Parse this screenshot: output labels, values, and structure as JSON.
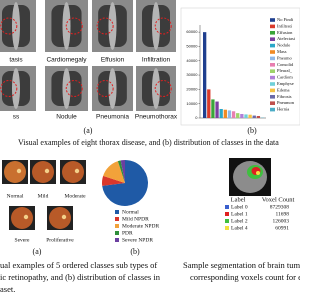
{
  "xray": {
    "labels": [
      "tasis",
      "Cardiomegaly",
      "Effusion",
      "Infiltration",
      "ss",
      "Nodule",
      "Pneumonia",
      "Pneumothorax"
    ],
    "panel_label": "(a)"
  },
  "bar_panel_label": "(b)",
  "caption_1": "Visual examples of eight thorax disease, and (b) distribution of classes in the data",
  "chart_data": [
    {
      "type": "bar",
      "categories": [
        "No Findi",
        "Infiltrati",
        "Effusion",
        "Atelectasi",
        "Nodule",
        "Mass",
        "Pneumo",
        "Consolid",
        "Pleural_",
        "Cardiom",
        "Emphyse",
        "Edema",
        "Fibrosis",
        "Pneumon",
        "Hernia"
      ],
      "values": [
        60000,
        20000,
        13000,
        11500,
        6300,
        5800,
        5300,
        4700,
        3400,
        2800,
        2500,
        2300,
        1700,
        1400,
        230
      ],
      "colors": [
        "#1f3f8f",
        "#d93a2b",
        "#3aa53a",
        "#7b3fa0",
        "#2aa7c9",
        "#f08a24",
        "#8fb8e8",
        "#e87fb0",
        "#9ed36a",
        "#b07fd8",
        "#6fd0d8",
        "#f5c242",
        "#6a6aa8",
        "#c0504d",
        "#4bacc6"
      ],
      "ylim": [
        0,
        65000
      ],
      "yticks": [
        0,
        10000,
        20000,
        30000,
        40000,
        50000,
        60000
      ]
    },
    {
      "type": "pie",
      "categories": [
        "Normal",
        "Mild NPDR",
        "Moderate NPDR",
        "PDR",
        "Severe NPDR"
      ],
      "values": [
        73,
        7,
        15,
        2,
        3
      ],
      "colors": [
        "#1f5aa6",
        "#d9372b",
        "#f2a23a",
        "#2f8f3a",
        "#6b3fa0"
      ]
    }
  ],
  "retina": {
    "labels": [
      "Normal",
      "Mild",
      "Moderate",
      "Severe",
      "Proliferative"
    ],
    "panel_labels": [
      "(a)",
      "(b)"
    ],
    "caption": [
      "ual examples of 5 ordered classes sub types of",
      "ic retinopathy, and (b) distribution of classes in",
      "aset."
    ]
  },
  "brain": {
    "table": {
      "header": [
        "Label",
        "Voxel Count"
      ],
      "rows": [
        [
          "Label 0",
          8729308
        ],
        [
          "Label 1",
          11698
        ],
        [
          "Label 2",
          126003
        ],
        [
          "Label 4",
          60991
        ]
      ]
    },
    "caption": [
      "Sample segmentation of brain tum",
      "corresponding voxels count for eac"
    ]
  }
}
